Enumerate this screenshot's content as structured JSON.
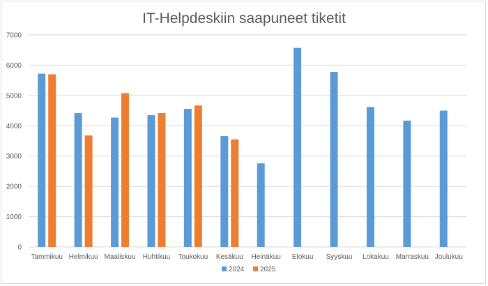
{
  "chart_data": {
    "type": "bar",
    "title": "IT-Helpdeskiin saapuneet tiketit",
    "xlabel": "",
    "ylabel": "",
    "ylim": [
      0,
      7000
    ],
    "yticks": [
      "0",
      "1000",
      "2000",
      "3000",
      "4000",
      "5000",
      "6000",
      "7000"
    ],
    "grid": true,
    "legend_position": "bottom",
    "categories": [
      "Tammikuu",
      "Helmikuu",
      "Maaliskuu",
      "Huhtikuu",
      "Toukokuu",
      "Kesäkuu",
      "Heinäkuu",
      "Elokuu",
      "Syyskuu",
      "Lokakuu",
      "Marraskuu",
      "Joulukuu"
    ],
    "series": [
      {
        "name": "2024",
        "color": "#5b9bd5",
        "values": [
          5720,
          4420,
          4270,
          4350,
          4560,
          3660,
          2760,
          6570,
          5780,
          4620,
          4170,
          4500
        ]
      },
      {
        "name": "2025",
        "color": "#ed7d31",
        "values": [
          5700,
          3680,
          5080,
          4420,
          4670,
          3550,
          null,
          null,
          null,
          null,
          null,
          null
        ]
      }
    ]
  }
}
